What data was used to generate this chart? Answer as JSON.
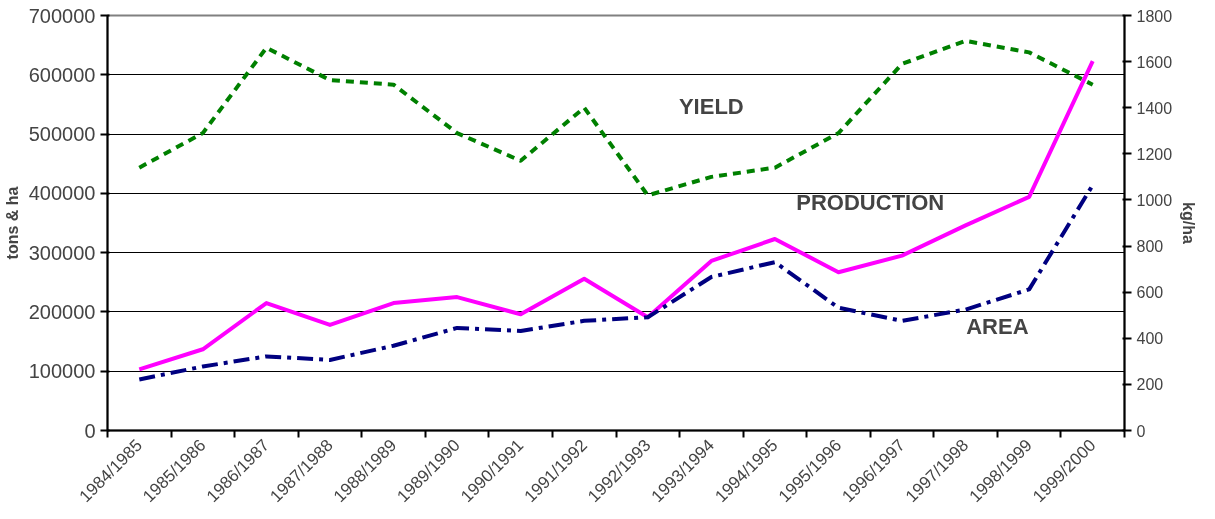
{
  "chart_data": {
    "type": "line",
    "categories": [
      "1984/1985",
      "1985/1986",
      "1986/1987",
      "1987/1988",
      "1988/1989",
      "1989/1990",
      "1990/1991",
      "1991/1992",
      "1992/1993",
      "1993/1994",
      "1994/1995",
      "1995/1996",
      "1996/1997",
      "1997/1998",
      "1998/1999",
      "1999/2000"
    ],
    "ylabel": "tons & ha",
    "y2label": "kg/ha",
    "ylim": [
      0,
      700000
    ],
    "yticks": [
      0,
      100000,
      200000,
      300000,
      400000,
      500000,
      600000,
      700000
    ],
    "y2lim": [
      0,
      1800
    ],
    "y2ticks": [
      0,
      200,
      400,
      600,
      800,
      1000,
      1200,
      1400,
      1600,
      1800
    ],
    "grid": "y",
    "marker": "none",
    "series": [
      {
        "name": "YIELD",
        "color": "#008000",
        "axis": "y2",
        "line_style": "dashed",
        "values": [
          1140,
          1290,
          1660,
          1520,
          1500,
          1290,
          1170,
          1400,
          1020,
          1100,
          1140,
          1290,
          1590,
          1690,
          1640,
          1500
        ]
      },
      {
        "name": "PRODUCTION",
        "color": "#ff00ff",
        "line_style": "solid",
        "values": [
          103000,
          137000,
          215000,
          178000,
          215000,
          225000,
          196000,
          256000,
          191000,
          286000,
          323000,
          267000,
          295000,
          346000,
          394000,
          623000
        ]
      },
      {
        "name": "AREA",
        "color": "#000080",
        "line_style": "dashdot",
        "values": [
          86000,
          108000,
          125000,
          119000,
          143000,
          173000,
          168000,
          185000,
          191000,
          259000,
          284000,
          207000,
          185000,
          204000,
          238000,
          414000
        ]
      }
    ]
  }
}
